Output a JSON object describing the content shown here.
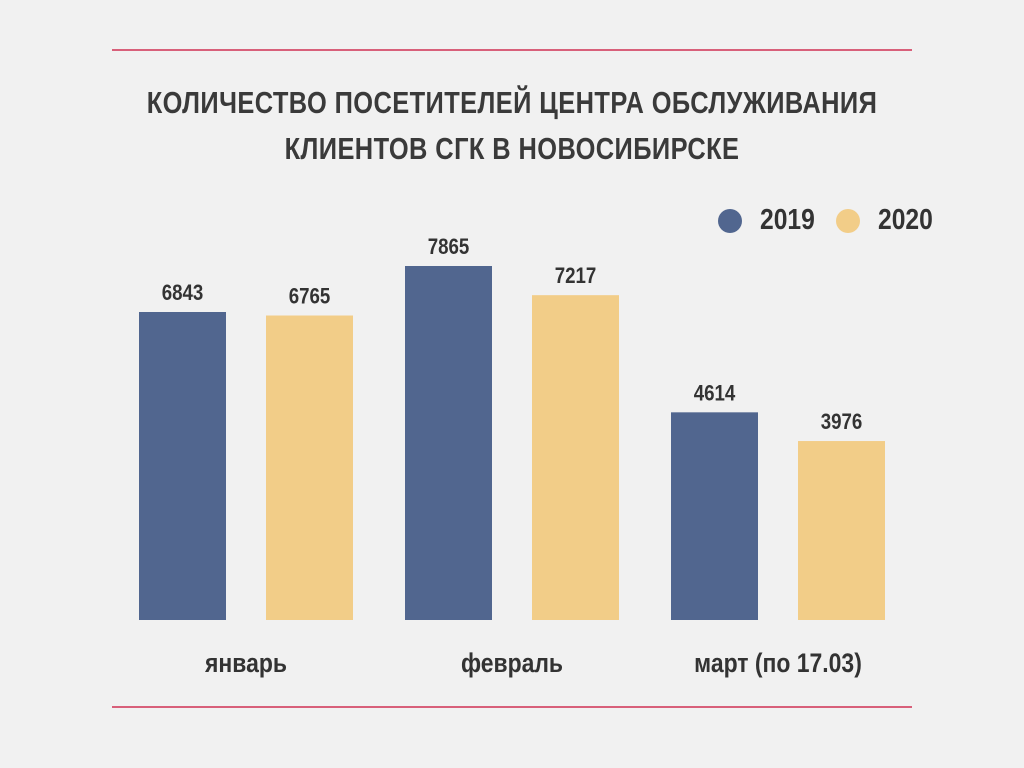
{
  "title_lines": [
    "КОЛИЧЕСТВО ПОСЕТИТЕЛЕЙ ЦЕНТРА ОБСЛУЖИВАНИЯ",
    "КЛИЕНТОВ СГК В НОВОСИБИРСКЕ"
  ],
  "chart_data": {
    "type": "bar",
    "title": "КОЛИЧЕСТВО ПОСЕТИТЕЛЕЙ ЦЕНТРА ОБСЛУЖИВАНИЯ КЛИЕНТОВ СГК В НОВОСИБИРСКЕ",
    "categories": [
      "январь",
      "февраль",
      "март (по 17.03)"
    ],
    "series": [
      {
        "name": "2019",
        "color": "#51668f",
        "values": [
          6843,
          7865,
          4614
        ]
      },
      {
        "name": "2020",
        "color": "#f2cd88",
        "values": [
          6765,
          7217,
          3976
        ]
      }
    ],
    "ylim": [
      0,
      7865
    ],
    "xlabel": "",
    "ylabel": "",
    "grid": false,
    "legend_position": "top-right",
    "data_labels": true
  },
  "colors": {
    "rule": "#d8607a",
    "background": "#f1f1f1",
    "text": "#333333"
  }
}
